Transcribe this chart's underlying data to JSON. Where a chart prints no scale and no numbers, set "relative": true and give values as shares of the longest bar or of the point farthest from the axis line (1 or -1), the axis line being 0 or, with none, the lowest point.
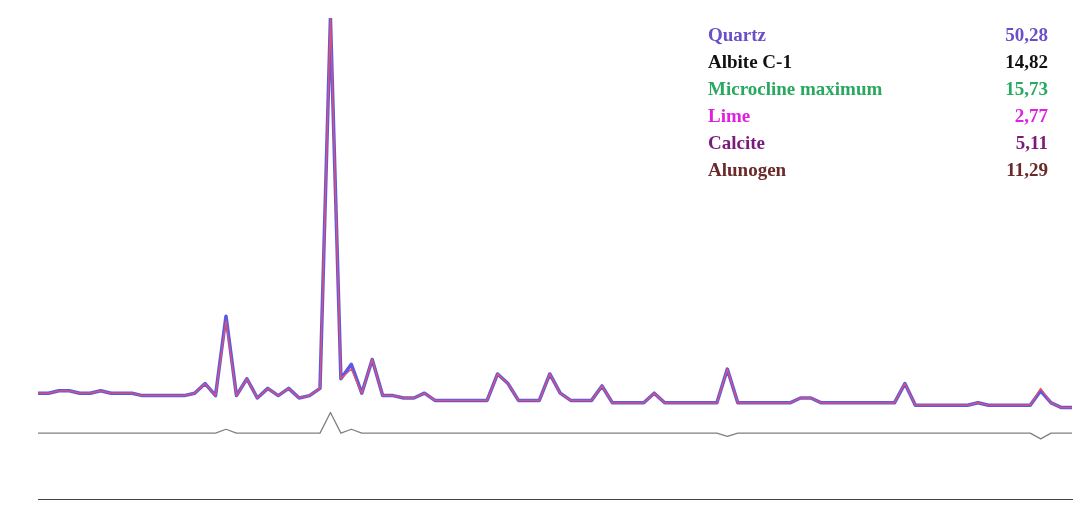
{
  "chart_data": {
    "type": "line",
    "relative": true,
    "grid": false,
    "legend": false,
    "categories": [
      null,
      null,
      null,
      null,
      null,
      null,
      null,
      null,
      null,
      null,
      null,
      null,
      null,
      null,
      null,
      null,
      null,
      null,
      null,
      null,
      null,
      null,
      null,
      null,
      null,
      null,
      null,
      null,
      null,
      null,
      null,
      null,
      null,
      null,
      null,
      null,
      null,
      null,
      null,
      null,
      null,
      null,
      null,
      null,
      null,
      null,
      null,
      null,
      null,
      null,
      null,
      null,
      null,
      null,
      null,
      null,
      null,
      null,
      null,
      null,
      null,
      null,
      null,
      null,
      null,
      null,
      null,
      null,
      null,
      null,
      null,
      null,
      null,
      null,
      null,
      null,
      null,
      null,
      null,
      null,
      null,
      null,
      null,
      null,
      null,
      null,
      null,
      null,
      null,
      null,
      null,
      null,
      null,
      null,
      null,
      null,
      null,
      null,
      null,
      null
    ],
    "series": [
      {
        "color": "#5a5ae6",
        "values": [
          0.22,
          0.22,
          0.225,
          0.225,
          0.22,
          0.22,
          0.225,
          0.22,
          0.22,
          0.22,
          0.215,
          0.215,
          0.215,
          0.215,
          0.215,
          0.22,
          0.24,
          0.215,
          0.38,
          0.215,
          0.25,
          0.21,
          0.23,
          0.215,
          0.23,
          0.21,
          0.215,
          0.23,
          1.0,
          0.25,
          0.28,
          0.22,
          0.29,
          0.215,
          0.215,
          0.21,
          0.21,
          0.22,
          0.205,
          0.205,
          0.205,
          0.205,
          0.205,
          0.205,
          0.26,
          0.24,
          0.205,
          0.205,
          0.205,
          0.26,
          0.22,
          0.205,
          0.205,
          0.205,
          0.235,
          0.2,
          0.2,
          0.2,
          0.2,
          0.22,
          0.2,
          0.2,
          0.2,
          0.2,
          0.2,
          0.2,
          0.27,
          0.2,
          0.2,
          0.2,
          0.2,
          0.2,
          0.2,
          0.21,
          0.21,
          0.2,
          0.2,
          0.2,
          0.2,
          0.2,
          0.2,
          0.2,
          0.2,
          0.24,
          0.195,
          0.195,
          0.195,
          0.195,
          0.195,
          0.195,
          0.2,
          0.195,
          0.195,
          0.195,
          0.195,
          0.195,
          0.225,
          0.2,
          0.19,
          0.19
        ]
      },
      {
        "color": "#e8506a",
        "values": [
          0.22,
          0.22,
          0.225,
          0.225,
          0.22,
          0.22,
          0.225,
          0.22,
          0.22,
          0.22,
          0.215,
          0.215,
          0.215,
          0.215,
          0.215,
          0.22,
          0.24,
          0.215,
          0.37,
          0.215,
          0.25,
          0.21,
          0.23,
          0.215,
          0.23,
          0.21,
          0.215,
          0.23,
          1.0,
          0.25,
          0.27,
          0.22,
          0.29,
          0.215,
          0.215,
          0.21,
          0.21,
          0.22,
          0.205,
          0.205,
          0.205,
          0.205,
          0.205,
          0.205,
          0.26,
          0.24,
          0.205,
          0.205,
          0.205,
          0.26,
          0.22,
          0.205,
          0.205,
          0.205,
          0.235,
          0.2,
          0.2,
          0.2,
          0.2,
          0.22,
          0.2,
          0.2,
          0.2,
          0.2,
          0.2,
          0.2,
          0.27,
          0.2,
          0.2,
          0.2,
          0.2,
          0.2,
          0.2,
          0.21,
          0.21,
          0.2,
          0.2,
          0.2,
          0.2,
          0.2,
          0.2,
          0.2,
          0.2,
          0.24,
          0.195,
          0.195,
          0.195,
          0.195,
          0.195,
          0.195,
          0.2,
          0.195,
          0.195,
          0.195,
          0.195,
          0.195,
          0.23,
          0.2,
          0.19,
          0.19
        ]
      },
      {
        "color": "#808080",
        "values": [
          0.137,
          0.137,
          0.137,
          0.137,
          0.137,
          0.137,
          0.137,
          0.137,
          0.137,
          0.137,
          0.137,
          0.137,
          0.137,
          0.137,
          0.137,
          0.137,
          0.137,
          0.137,
          0.145,
          0.137,
          0.137,
          0.137,
          0.137,
          0.137,
          0.137,
          0.137,
          0.137,
          0.137,
          0.18,
          0.137,
          0.145,
          0.137,
          0.137,
          0.137,
          0.137,
          0.137,
          0.137,
          0.137,
          0.137,
          0.137,
          0.137,
          0.137,
          0.137,
          0.137,
          0.137,
          0.137,
          0.137,
          0.137,
          0.137,
          0.137,
          0.137,
          0.137,
          0.137,
          0.137,
          0.137,
          0.137,
          0.137,
          0.137,
          0.137,
          0.137,
          0.137,
          0.137,
          0.137,
          0.137,
          0.137,
          0.137,
          0.13,
          0.137,
          0.137,
          0.137,
          0.137,
          0.137,
          0.137,
          0.137,
          0.137,
          0.137,
          0.137,
          0.137,
          0.137,
          0.137,
          0.137,
          0.137,
          0.137,
          0.137,
          0.137,
          0.137,
          0.137,
          0.137,
          0.137,
          0.137,
          0.137,
          0.137,
          0.137,
          0.137,
          0.137,
          0.137,
          0.125,
          0.137,
          0.137,
          0.137
        ]
      }
    ],
    "annotations": [
      "Quartz",
      "50,28",
      "Albite C-1",
      "14,82",
      "Microcline maximum",
      "15,73",
      "Lime",
      "2,77",
      "Calcite",
      "5,11",
      "Alunogen",
      "11,29"
    ]
  }
}
